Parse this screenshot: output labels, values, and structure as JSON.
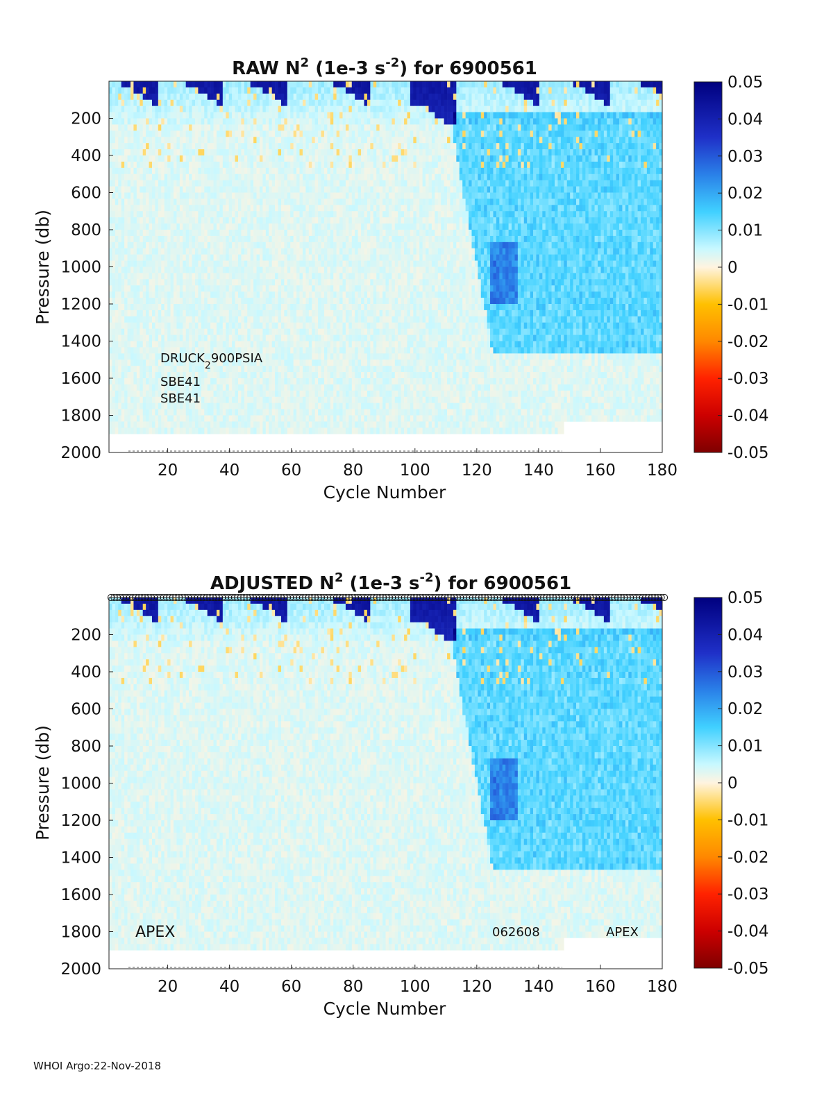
{
  "footer": "WHOI Argo:22-Nov-2018",
  "colorbar": {
    "ticks": [
      "0.05",
      "0.04",
      "0.03",
      "0.02",
      "0.01",
      "0",
      "-0.01",
      "-0.02",
      "-0.03",
      "-0.04",
      "-0.05"
    ],
    "colormap": "jet-like with white at zero",
    "colors": [
      "#7f0000",
      "#cc0000",
      "#ff3300",
      "#ff8800",
      "#ffc000",
      "#fff0d0",
      "#aaf5ff",
      "#40c8ff",
      "#2a7de8",
      "#1f2fc8",
      "#00007f"
    ]
  },
  "chart_data": [
    {
      "type": "heatmap",
      "title_main": "RAW N",
      "title_exp1": "2",
      "title_mid": " (1e-3 s",
      "title_exp2": "-2",
      "title_end": ") for 6900561",
      "xlabel": "Cycle Number",
      "ylabel": "Pressure (db)",
      "xlim": [
        1,
        180
      ],
      "ylim": [
        0,
        2000
      ],
      "y_reversed": true,
      "clim": [
        -0.05,
        0.05
      ],
      "x_ticks": [
        "20",
        "40",
        "60",
        "80",
        "100",
        "120",
        "140",
        "160",
        "180"
      ],
      "y_ticks": [
        "200",
        "400",
        "600",
        "800",
        "1000",
        "1200",
        "1400",
        "1600",
        "1800",
        "2000"
      ],
      "annotations": {
        "sensor_main": "DRUCK",
        "sensor_sub": "2",
        "sensor_end": "900PSIA",
        "ctd_1": "SBE41",
        "ctd_2": "SBE41"
      }
    },
    {
      "type": "heatmap",
      "title_main": "ADJUSTED N",
      "title_exp1": "2",
      "title_mid": " (1e-3 s",
      "title_exp2": "-2",
      "title_end": ") for 6900561",
      "xlabel": "Cycle Number",
      "ylabel": "Pressure (db)",
      "xlim": [
        1,
        180
      ],
      "ylim": [
        0,
        2000
      ],
      "y_reversed": true,
      "clim": [
        -0.05,
        0.05
      ],
      "x_ticks": [
        "20",
        "40",
        "60",
        "80",
        "100",
        "120",
        "140",
        "160",
        "180"
      ],
      "y_ticks": [
        "200",
        "400",
        "600",
        "800",
        "1000",
        "1200",
        "1400",
        "1600",
        "1800",
        "2000"
      ],
      "annotations": {
        "float_type_left": "APEX",
        "firmware": "062608",
        "float_type_right": "APEX"
      },
      "qc_markers": "open circles along top for every cycle 1-180"
    }
  ]
}
